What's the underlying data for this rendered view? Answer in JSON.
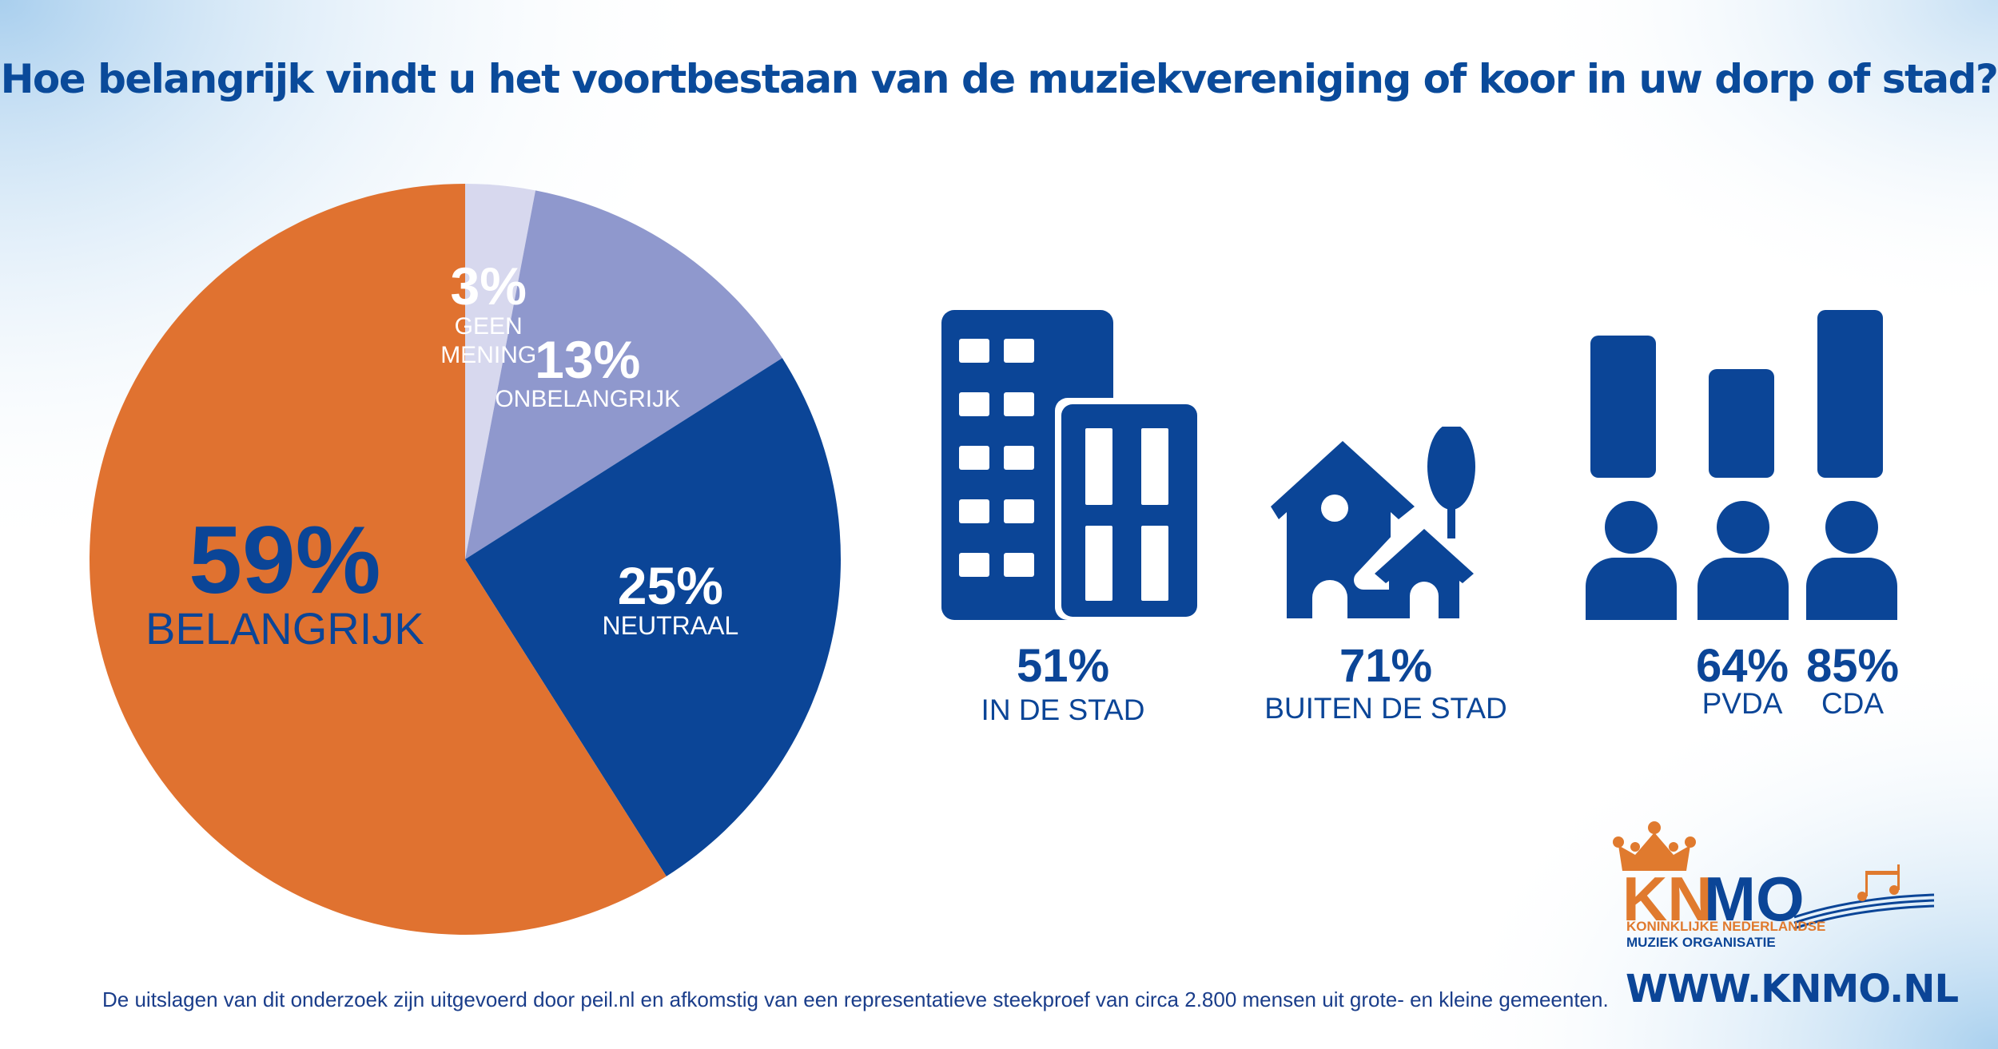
{
  "title": "Hoe belangrijk vindt u het voortbestaan van de muziekvereniging of koor in uw dorp of stad?",
  "chart_data": {
    "type": "pie",
    "slices": [
      {
        "label": "GEEN MENING",
        "value": 3,
        "pct_text": "3%",
        "color": "#d7d8ee"
      },
      {
        "label": "ONBELANGRIJK",
        "value": 13,
        "pct_text": "13%",
        "color": "#8f98cd"
      },
      {
        "label": "NEUTRAAL",
        "value": 25,
        "pct_text": "25%",
        "color": "#0b4597"
      },
      {
        "label": "BELANGRIJK",
        "value": 59,
        "pct_text": "59%",
        "color": "#e07230"
      }
    ],
    "start_angle": "12 o'clock",
    "direction": "clockwise"
  },
  "stats": [
    {
      "value": "51%",
      "label": "IN DE STAD",
      "icon": "city-buildings-icon"
    },
    {
      "value": "71%",
      "label": "BUITEN DE STAD",
      "icon": "house-tree-icon"
    },
    {
      "value": "64%",
      "label": "PVDA",
      "icon": "person-icon"
    },
    {
      "value": "85%",
      "label": "CDA",
      "icon": "person-icon"
    }
  ],
  "footnote": "De uitslagen van dit onderzoek zijn uitgevoerd door peil.nl en afkomstig van een representatieve steekproef van circa 2.800 mensen uit grote- en kleine gemeenten.",
  "logo": {
    "kn": "KN",
    "mo": "MO",
    "line1": "KONINKLIJKE NEDERLANDSE",
    "line2": "MUZIEK ORGANISATIE",
    "icon": "crown-icon"
  },
  "website": "WWW.KNMO.NL",
  "colors": {
    "blue": "#0b4597",
    "orange": "#e07230",
    "lavender": "#8f98cd",
    "pale": "#d7d8ee"
  }
}
